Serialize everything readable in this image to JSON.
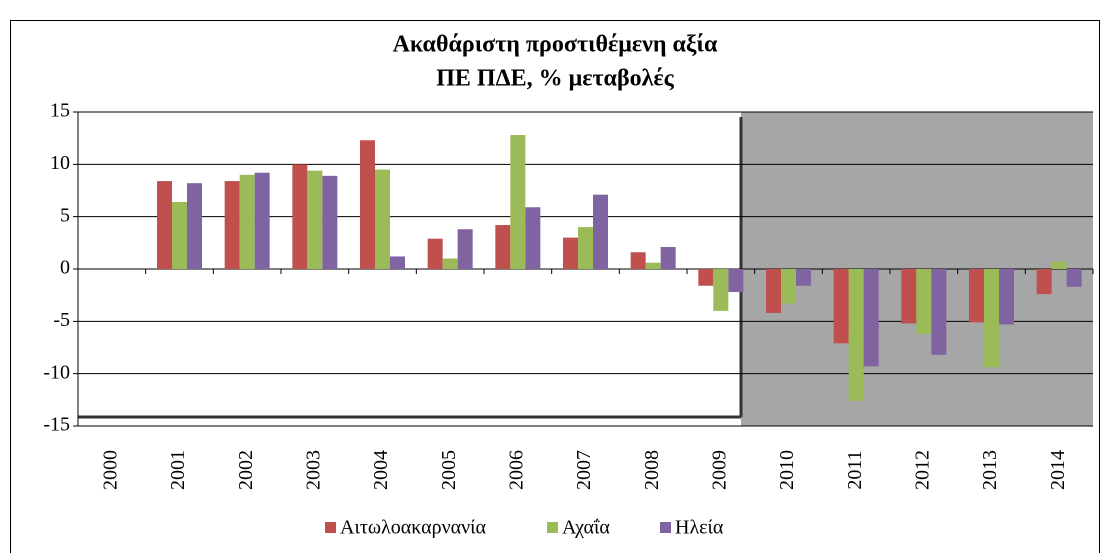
{
  "chart_data": {
    "type": "bar",
    "title": "Ακαθάριστη προστιθέμενη αξία",
    "subtitle": "ΠΕ ΠΔΕ, % μεταβολές",
    "categories": [
      "2000",
      "2001",
      "2002",
      "2003",
      "2004",
      "2005",
      "2006",
      "2007",
      "2008",
      "2009",
      "2010",
      "2011",
      "2012",
      "2013",
      "2014"
    ],
    "series": [
      {
        "name": "Αιτωλοακαρνανία",
        "color": "#c0504d",
        "values": [
          0,
          8.4,
          8.4,
          10.0,
          12.3,
          2.9,
          4.2,
          3.0,
          1.6,
          -1.6,
          -4.2,
          -7.1,
          -5.2,
          -5.1,
          -2.4
        ]
      },
      {
        "name": "Αχαΐα",
        "color": "#9bbb59",
        "values": [
          0,
          6.4,
          9.0,
          9.4,
          9.5,
          1.0,
          12.8,
          4.0,
          0.6,
          -4.0,
          -3.3,
          -12.6,
          -6.2,
          -9.4,
          0.7
        ]
      },
      {
        "name": "Ηλεία",
        "color": "#8064a2",
        "values": [
          0,
          8.2,
          9.2,
          8.9,
          1.2,
          3.8,
          5.9,
          7.1,
          2.1,
          -2.2,
          -1.6,
          -9.3,
          -8.2,
          -5.3,
          -1.7
        ]
      }
    ],
    "ylim": [
      -15,
      15
    ],
    "yticks": [
      -15,
      -10,
      -5,
      0,
      5,
      10,
      15
    ],
    "grid": true,
    "legend": "bottom"
  }
}
